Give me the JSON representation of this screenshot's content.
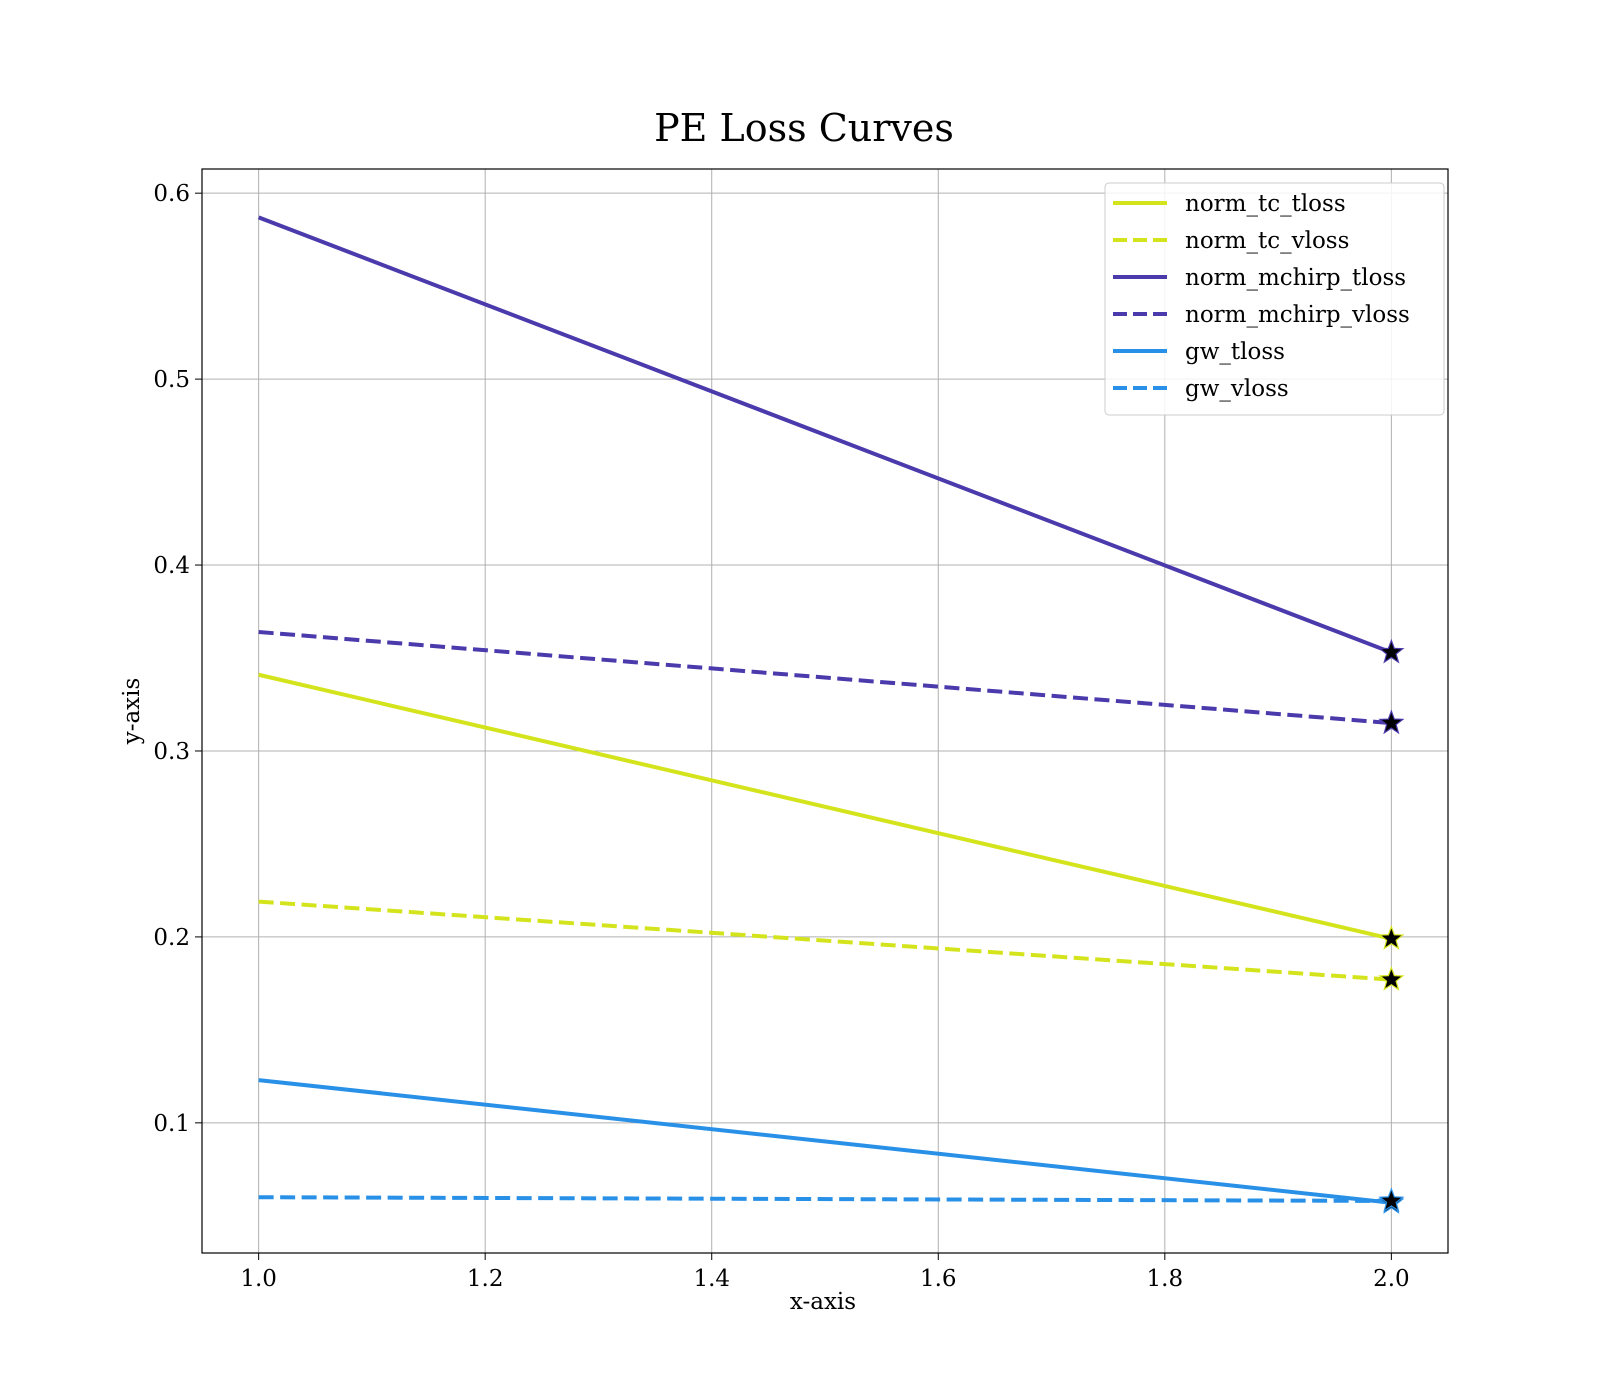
{
  "chart_data": {
    "type": "line",
    "title": "PE Loss Curves",
    "xlabel": "x-axis",
    "ylabel": "y-axis",
    "xlim": [
      0.95,
      2.05
    ],
    "ylim": [
      0.03,
      0.613
    ],
    "xticks": [
      1.0,
      1.2,
      1.4,
      1.6,
      1.8,
      2.0
    ],
    "xtick_labels": [
      "1.0",
      "1.2",
      "1.4",
      "1.6",
      "1.8",
      "2.0"
    ],
    "yticks": [
      0.1,
      0.2,
      0.3,
      0.4,
      0.5,
      0.6
    ],
    "ytick_labels": [
      "0.1",
      "0.2",
      "0.3",
      "0.4",
      "0.5",
      "0.6"
    ],
    "grid": true,
    "legend_position": "top-right",
    "end_marker": "star",
    "x": [
      1,
      2
    ],
    "series": [
      {
        "name": "norm_tc_tloss",
        "values": [
          0.341,
          0.199
        ],
        "color": "#d4e41c",
        "style": "solid"
      },
      {
        "name": "norm_tc_vloss",
        "values": [
          0.219,
          0.177
        ],
        "color": "#d4e41c",
        "style": "dashed"
      },
      {
        "name": "norm_mchirp_tloss",
        "values": [
          0.587,
          0.353
        ],
        "color": "#4a3aac",
        "style": "solid"
      },
      {
        "name": "norm_mchirp_vloss",
        "values": [
          0.364,
          0.315
        ],
        "color": "#4a3aac",
        "style": "dashed"
      },
      {
        "name": "gw_tloss",
        "values": [
          0.123,
          0.057
        ],
        "color": "#2990e8",
        "style": "solid"
      },
      {
        "name": "gw_vloss",
        "values": [
          0.06,
          0.058
        ],
        "color": "#2990e8",
        "style": "dashed"
      }
    ]
  }
}
